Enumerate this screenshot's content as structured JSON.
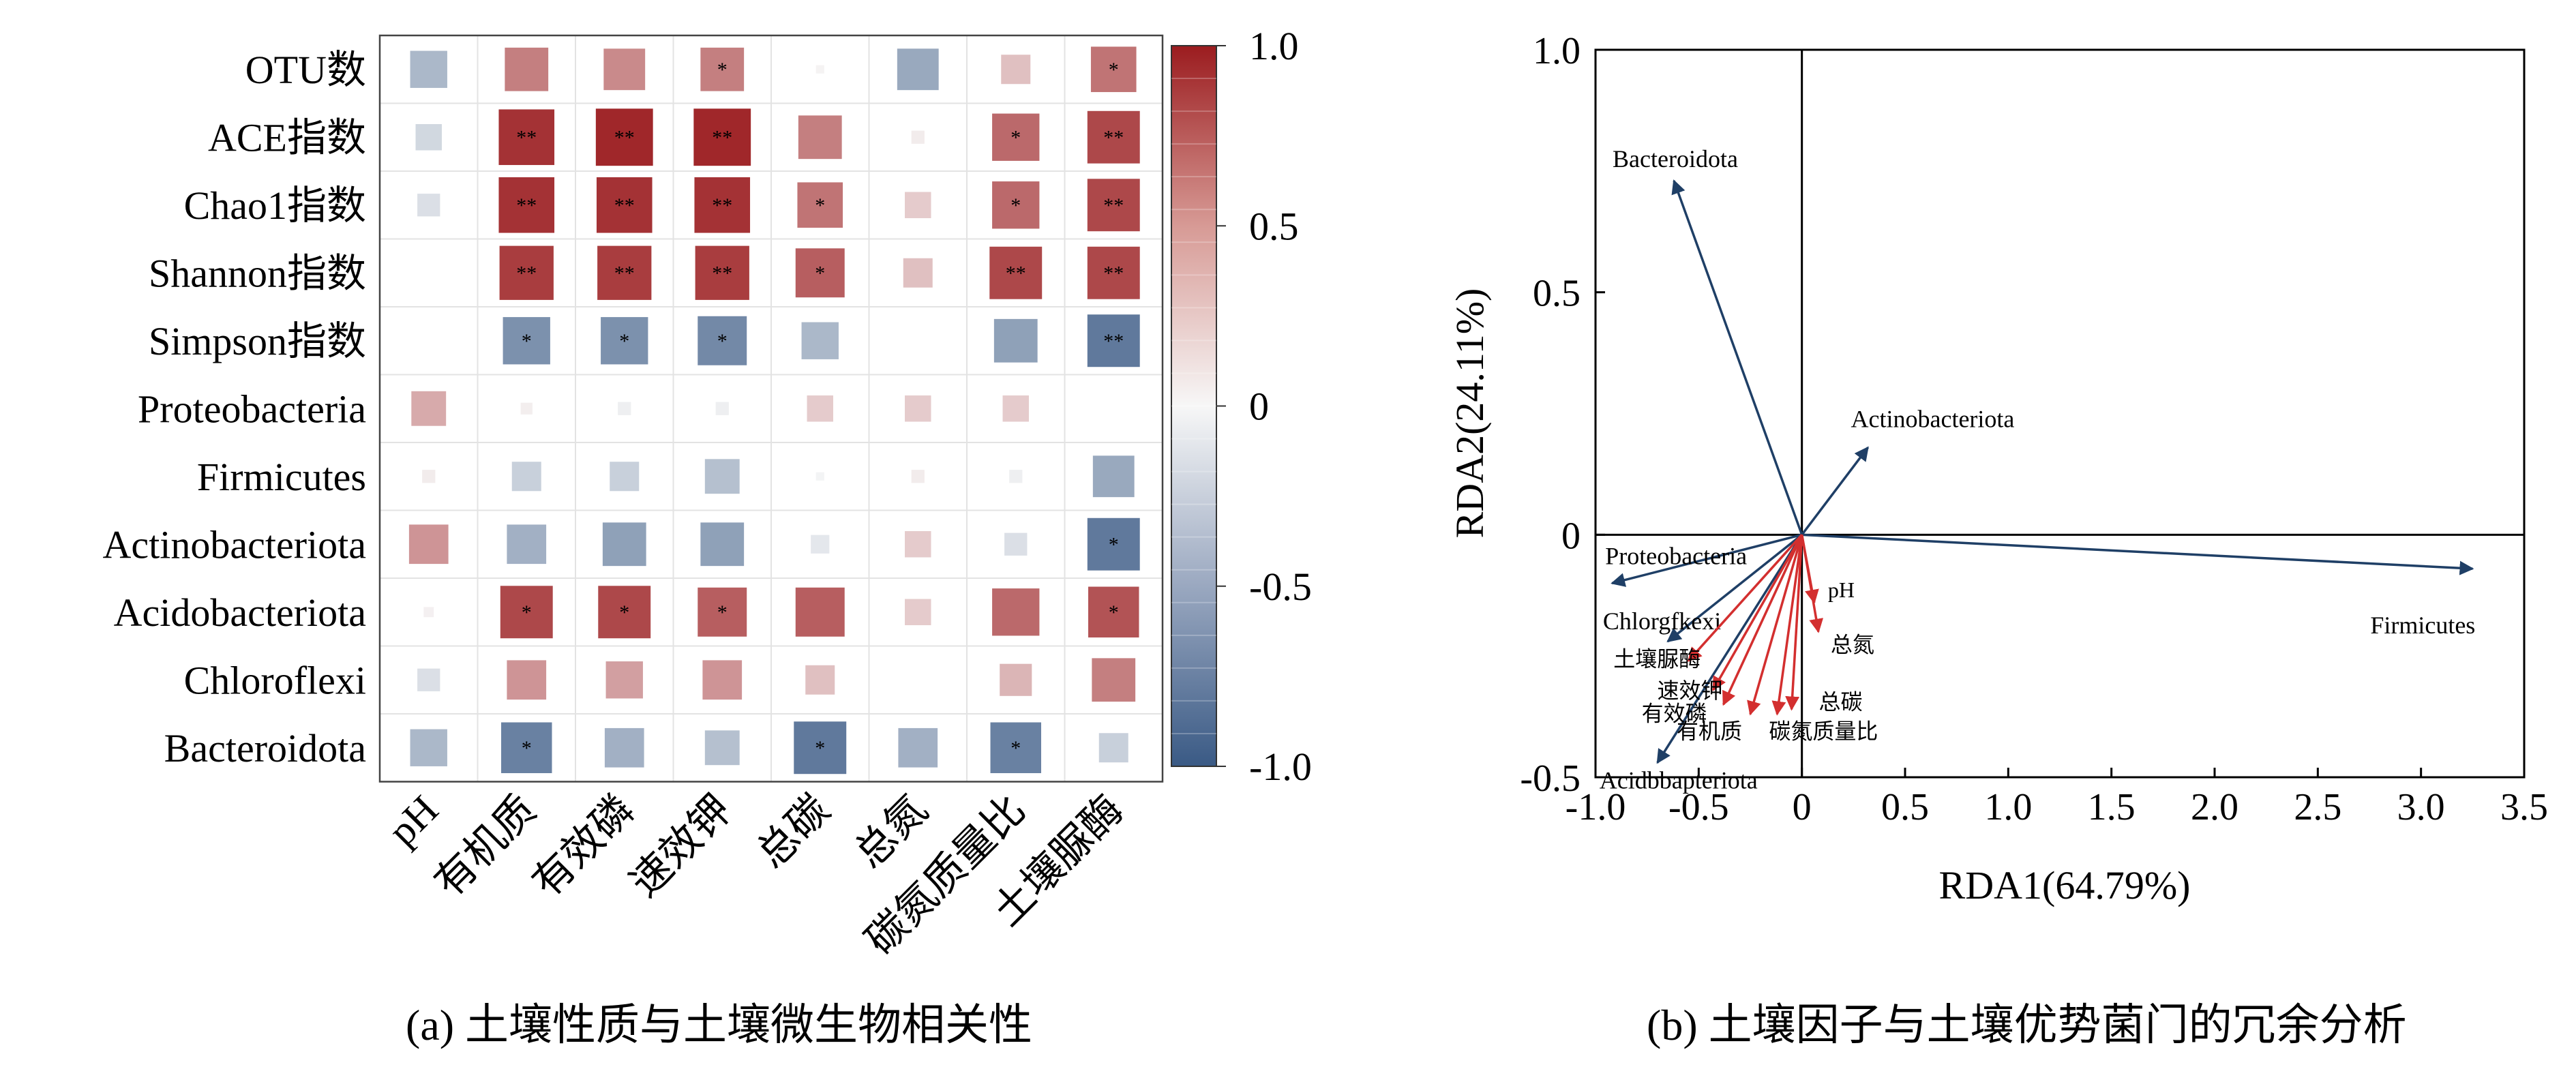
{
  "captions": {
    "a": "(a) 土壤性质与土壤微生物相关性",
    "b": "(b) 土壤因子与土壤优势菌门的冗余分析"
  },
  "colors": {
    "pos_strong": "#9b1c1f",
    "neg_strong": "#3a5a85",
    "env_arrow": "#d32f2f",
    "species_arrow": "#1f3f66"
  },
  "chart_data": [
    {
      "type": "heatmap",
      "rows": [
        "OTU数",
        "ACE指数",
        "Chao1指数",
        "Shannon指数",
        "Simpson指数",
        "Proteobacteria",
        "Firmicutes",
        "Actinobacteriota",
        "Acidobacteriota",
        "Chloroflexi",
        "Bacteroidota"
      ],
      "columns": [
        "pH",
        "有机质",
        "有效磷",
        "速效钾",
        "总碳",
        "总氮",
        "碳氮质量比",
        "土壤脲酶"
      ],
      "values": [
        [
          -0.4,
          0.55,
          0.5,
          0.55,
          0.02,
          -0.5,
          0.25,
          0.6
        ],
        [
          -0.2,
          0.9,
          0.95,
          0.95,
          0.55,
          0.05,
          0.65,
          0.8
        ],
        [
          -0.15,
          0.9,
          0.9,
          0.9,
          0.6,
          0.2,
          0.65,
          0.8
        ],
        [
          0.0,
          0.85,
          0.85,
          0.85,
          0.7,
          0.25,
          0.8,
          0.8
        ],
        [
          0.0,
          -0.65,
          -0.65,
          -0.7,
          -0.4,
          0.0,
          -0.55,
          -0.8
        ],
        [
          0.35,
          0.04,
          -0.05,
          -0.05,
          0.2,
          0.2,
          0.2,
          0.0
        ],
        [
          0.05,
          -0.25,
          -0.25,
          -0.35,
          -0.02,
          0.05,
          -0.05,
          -0.5
        ],
        [
          0.45,
          -0.45,
          -0.55,
          -0.55,
          -0.1,
          0.2,
          -0.15,
          -0.8
        ],
        [
          0.03,
          0.8,
          0.8,
          0.7,
          0.7,
          0.2,
          0.65,
          0.75
        ],
        [
          -0.15,
          0.45,
          0.4,
          0.45,
          0.25,
          0.0,
          0.3,
          0.55
        ],
        [
          -0.4,
          -0.75,
          -0.45,
          -0.35,
          -0.8,
          -0.45,
          -0.75,
          -0.25
        ]
      ],
      "significance": [
        [
          "",
          "",
          "",
          "*",
          "",
          "",
          "",
          "*"
        ],
        [
          "",
          "**",
          "**",
          "**",
          "",
          "",
          "*",
          "**"
        ],
        [
          "",
          "**",
          "**",
          "**",
          "*",
          "",
          "*",
          "**"
        ],
        [
          "",
          "**",
          "**",
          "**",
          "*",
          "",
          "**",
          "**"
        ],
        [
          "",
          "*",
          "*",
          "*",
          "",
          "",
          "",
          "**"
        ],
        [
          "",
          "",
          "",
          "",
          "",
          "",
          "",
          ""
        ],
        [
          "",
          "",
          "",
          "",
          "",
          "",
          "",
          ""
        ],
        [
          "",
          "",
          "",
          "",
          "",
          "",
          "",
          "*"
        ],
        [
          "",
          "*",
          "*",
          "*",
          "",
          "",
          "",
          "*"
        ],
        [
          "",
          "",
          "",
          "",
          "",
          "",
          "",
          ""
        ],
        [
          "",
          "*",
          "",
          "",
          "*",
          "",
          "*",
          ""
        ]
      ],
      "colorbar": {
        "range": [
          -1.0,
          1.0
        ],
        "ticks": [
          "1.0",
          "0.5",
          "0",
          "-0.5",
          "-1.0"
        ]
      }
    },
    {
      "type": "scatter",
      "subtype": "rda_biplot",
      "xlabel": "RDA1(64.79%)",
      "ylabel": "RDA2(24.11%)",
      "xlim": [
        -1.0,
        3.5
      ],
      "ylim": [
        -0.5,
        1.0
      ],
      "xticks": [
        "-1.0",
        "-0.5",
        "0",
        "0.5",
        "1.0",
        "1.5",
        "2.0",
        "2.5",
        "3.0",
        "3.5"
      ],
      "yticks": [
        "1.0",
        "0.5",
        "0",
        "-0.5"
      ],
      "species": [
        {
          "name": "Bacteroidota",
          "x": -0.62,
          "y": 0.73
        },
        {
          "name": "Actinobacteriota",
          "x": 0.32,
          "y": 0.18
        },
        {
          "name": "Proteobacteria",
          "x": -0.92,
          "y": -0.1
        },
        {
          "name": "Firmicutes",
          "x": 3.25,
          "y": -0.07
        },
        {
          "name": "Chlorgfkexi",
          "x": -0.65,
          "y": -0.22
        },
        {
          "name": "Acidbbapteriota",
          "x": -0.7,
          "y": -0.47
        }
      ],
      "environment": [
        {
          "name": "pH",
          "x": 0.06,
          "y": -0.14
        },
        {
          "name": "总氮",
          "x": 0.08,
          "y": -0.2
        },
        {
          "name": "总碳",
          "x": -0.05,
          "y": -0.36
        },
        {
          "name": "碳氮质量比",
          "x": -0.12,
          "y": -0.37
        },
        {
          "name": "有机质",
          "x": -0.25,
          "y": -0.37
        },
        {
          "name": "有效磷",
          "x": -0.38,
          "y": -0.35
        },
        {
          "name": "速效钾",
          "x": -0.43,
          "y": -0.32
        },
        {
          "name": "土壤脲酶",
          "x": -0.55,
          "y": -0.26
        }
      ]
    }
  ]
}
